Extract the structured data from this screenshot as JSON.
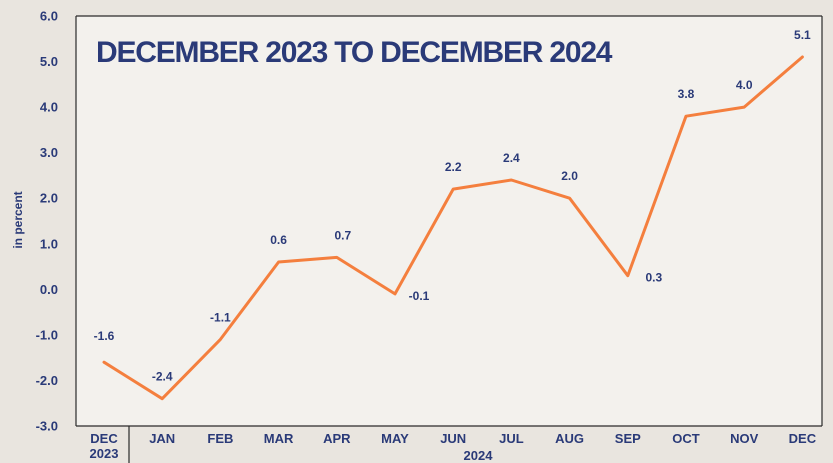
{
  "chart_data": {
    "type": "line",
    "title": "DECEMBER 2023 TO DECEMBER 2024",
    "ylabel": "in percent",
    "xlabel": "",
    "ylim": [
      -3.0,
      6.0
    ],
    "yticks": [
      "-3.0",
      "-2.0",
      "-1.0",
      "0.0",
      "1.0",
      "2.0",
      "3.0",
      "4.0",
      "5.0",
      "6.0"
    ],
    "categories": [
      "DEC",
      "JAN",
      "FEB",
      "MAR",
      "APR",
      "MAY",
      "JUN",
      "JUL",
      "AUG",
      "SEP",
      "OCT",
      "NOV",
      "DEC"
    ],
    "year_groups": [
      "2023",
      "2024"
    ],
    "series": [
      {
        "values": [
          -1.6,
          -2.4,
          -1.1,
          0.6,
          0.7,
          -0.1,
          2.2,
          2.4,
          2.0,
          0.3,
          3.8,
          4.0,
          5.1
        ],
        "labels": [
          "-1.6",
          "-2.4",
          "-1.1",
          "0.6",
          "0.7",
          "-0.1",
          "2.2",
          "2.4",
          "2.0",
          "0.3",
          "3.8",
          "4.0",
          "5.1"
        ]
      }
    ],
    "line_color": "#f47f3e",
    "grid": false
  },
  "colors": {
    "background": "#e9e5df",
    "plot_background": "#f3f1ed",
    "text": "#2a3a78",
    "axis": "#2b2b2b",
    "accent": "#f47f3e"
  }
}
